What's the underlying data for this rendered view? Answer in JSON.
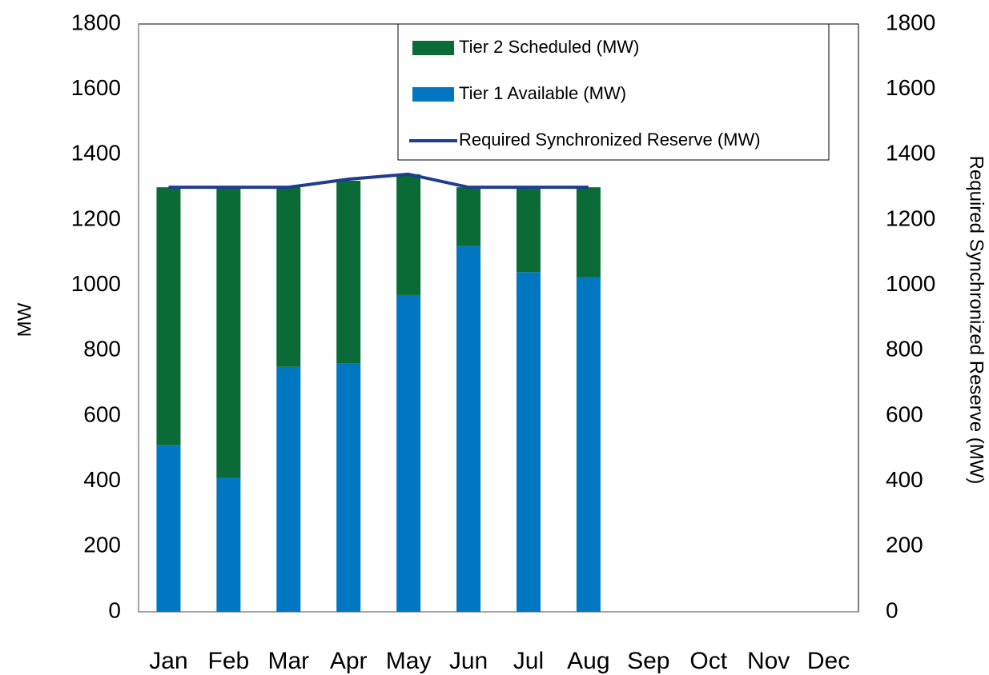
{
  "chart_data": {
    "type": "bar",
    "categories": [
      "Jan",
      "Feb",
      "Mar",
      "Apr",
      "May",
      "Jun",
      "Jul",
      "Aug",
      "Sep",
      "Oct",
      "Nov",
      "Dec"
    ],
    "series": [
      {
        "name": "Tier 2 Scheduled (MW)",
        "color": "#0b6b37",
        "stack": true,
        "values": [
          790,
          890,
          550,
          560,
          370,
          180,
          260,
          275,
          null,
          null,
          null,
          null
        ]
      },
      {
        "name": "Tier 1 Available (MW)",
        "color": "#0077c0",
        "stack": true,
        "values": [
          510,
          410,
          750,
          760,
          970,
          1120,
          1040,
          1025,
          null,
          null,
          null,
          null
        ]
      },
      {
        "name": "Required Synchronized Reserve (MW)",
        "color": "#1f3c8f",
        "type": "line",
        "axis": "y2",
        "values": [
          1300,
          1300,
          1300,
          1325,
          1340,
          1300,
          1300,
          1300,
          null,
          null,
          null,
          null
        ]
      }
    ],
    "ylabel": "MW",
    "y2label": "Required Synchronized Reserve (MW)",
    "ylim": [
      0,
      1800
    ],
    "yticks": [
      0,
      200,
      400,
      600,
      800,
      1000,
      1200,
      1400,
      1600,
      1800
    ],
    "y2lim": [
      0,
      1800
    ],
    "y2ticks": [
      0,
      200,
      400,
      600,
      800,
      1000,
      1200,
      1400,
      1600,
      1800
    ],
    "grid": false,
    "legend": "top-right"
  }
}
